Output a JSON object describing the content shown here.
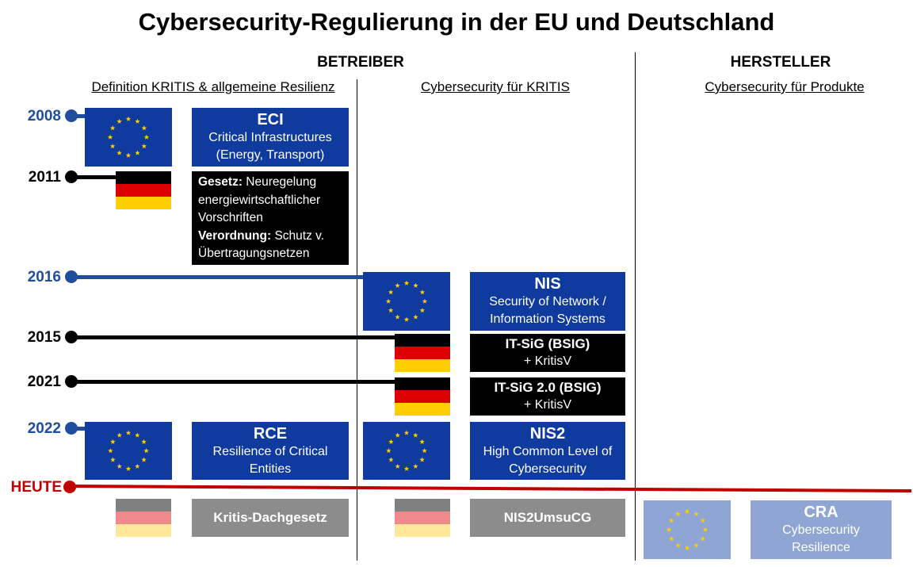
{
  "title": "Cybersecurity-Regulierung in der EU und Deutschland",
  "headers": {
    "betreiber": "BETREIBER",
    "hersteller": "HERSTELLER",
    "col1": "Definition KRITIS & allgemeine Resilienz",
    "col2": "Cybersecurity für KRITIS",
    "col3": "Cybersecurity für Produkte"
  },
  "years": {
    "y2008": "2008",
    "y2011": "2011",
    "y2016": "2016",
    "y2015": "2015",
    "y2021": "2021",
    "y2022": "2022",
    "heute": "HEUTE"
  },
  "boxes": {
    "eci": {
      "title": "ECI",
      "line1": "Critical Infrastructures",
      "line2": "(Energy, Transport)"
    },
    "law2011": {
      "gesetz_label": "Gesetz:",
      "gesetz_text_1": " Neuregelung",
      "gesetz_text_2": "energiewirtschaftlicher",
      "gesetz_text_3": "Vorschriften",
      "verordnung_label": "Verordnung:",
      "verordnung_text_1": " Schutz v.",
      "verordnung_text_2": "Übertragungsnetzen"
    },
    "nis": {
      "title": "NIS",
      "line1": "Security of Network /",
      "line2": "Information Systems"
    },
    "itsig": {
      "title": "IT-SiG (BSIG)",
      "line1": "+ KritisV"
    },
    "itsig2": {
      "title": "IT-SiG 2.0 (BSIG)",
      "line1": "+ KritisV"
    },
    "rce": {
      "title": "RCE",
      "line1": "Resilience of Critical",
      "line2": "Entities"
    },
    "nis2": {
      "title": "NIS2",
      "line1": "High Common Level of",
      "line2": "Cybersecurity"
    },
    "kritis_dach": {
      "title": "Kritis-Dachgesetz"
    },
    "nis2umsucg": {
      "title": "NIS2UmsuCG"
    },
    "cra": {
      "title": "CRA",
      "line1": "Cybersecurity",
      "line2": "Resilience"
    }
  },
  "colors": {
    "eu_blue": "#0f3a9e",
    "year_blue": "#1f4e9c",
    "heute_red": "#c00000",
    "gray": "#8c8c8c",
    "light_blue": "#8fa6d4",
    "de_black": "#000000",
    "de_red": "#dd0000",
    "de_gold": "#ffce00"
  },
  "icons": [
    "eu-flag-icon",
    "germany-flag-icon"
  ]
}
